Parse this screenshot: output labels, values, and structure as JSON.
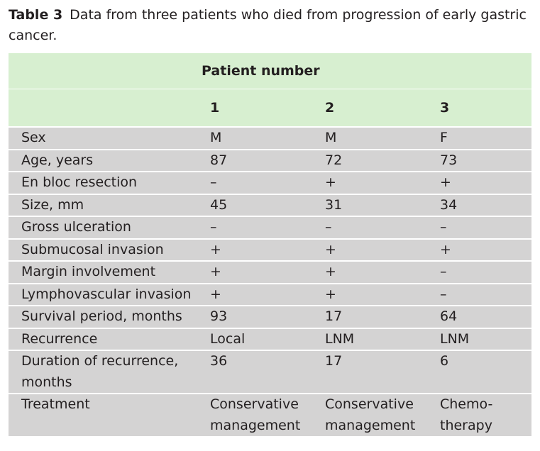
{
  "caption": {
    "label": "Table 3",
    "text": "Data from three patients who died from progression of early gastric cancer."
  },
  "table": {
    "group_header": "Patient number",
    "patients": [
      "1",
      "2",
      "3"
    ],
    "rows": [
      {
        "label": "Sex",
        "values": [
          "M",
          "M",
          "F"
        ],
        "shade": "grey"
      },
      {
        "label": "Age, years",
        "values": [
          "87",
          "72",
          "73"
        ],
        "shade": "grey"
      },
      {
        "label": "En bloc resection",
        "values": [
          "–",
          "+",
          "+"
        ],
        "shade": "grey"
      },
      {
        "label": "Size, mm",
        "values": [
          "45",
          "31",
          "34"
        ],
        "shade": "grey"
      },
      {
        "label": "Gross ulceration",
        "values": [
          "–",
          "–",
          "–"
        ],
        "shade": "grey"
      },
      {
        "label": "Submucosal invasion",
        "values": [
          "+",
          "+",
          "+"
        ],
        "shade": "grey"
      },
      {
        "label": "Margin involvement",
        "values": [
          "+",
          "+",
          "–"
        ],
        "shade": "grey"
      },
      {
        "label": "Lymphovascular invasion",
        "values": [
          "+",
          "+",
          "–"
        ],
        "shade": "grey"
      },
      {
        "label": "Survival period, months",
        "values": [
          "93",
          "17",
          "64"
        ],
        "shade": "grey"
      },
      {
        "label": "Recurrence",
        "values": [
          "Local",
          "LNM",
          "LNM"
        ],
        "shade": "grey"
      },
      {
        "label": "Duration of recurrence, months",
        "values": [
          "36",
          "17",
          "6"
        ],
        "shade": "grey"
      },
      {
        "label": "Treatment",
        "values": [
          "Conservative management",
          "Conservative management",
          "Chemo-therapy"
        ],
        "shade": "grey"
      }
    ]
  },
  "colors": {
    "header_bg": "#d7efd0",
    "row_bg": "#d4d3d3",
    "text": "#231f20"
  }
}
